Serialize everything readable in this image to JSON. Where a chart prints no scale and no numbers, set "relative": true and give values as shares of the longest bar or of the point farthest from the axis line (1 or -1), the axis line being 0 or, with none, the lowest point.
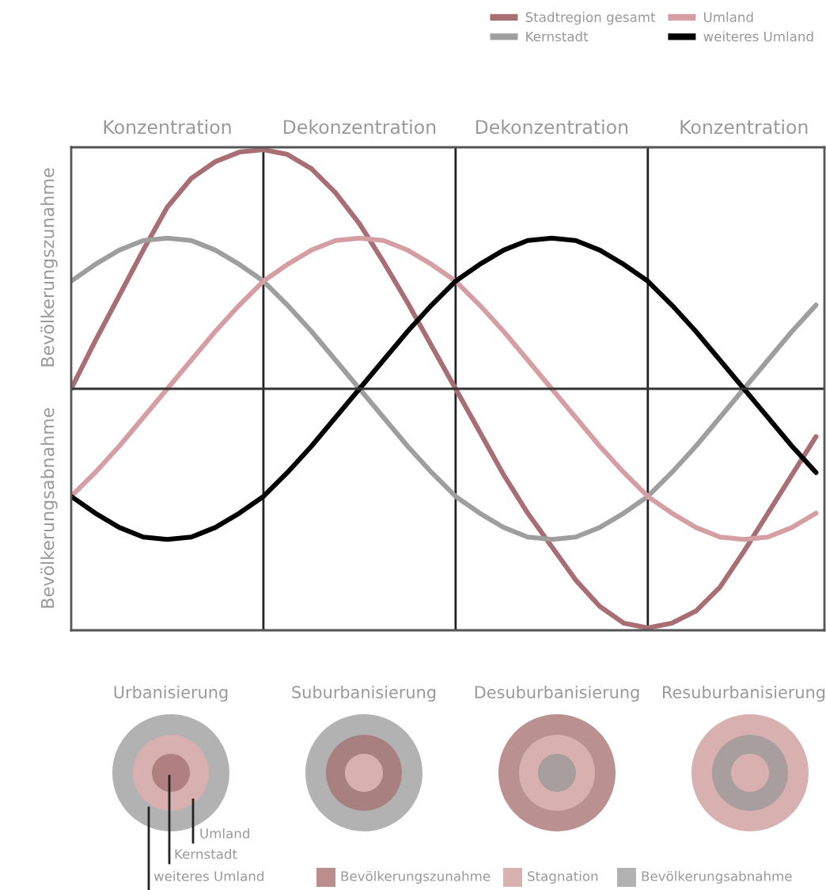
{
  "chart_data": {
    "type": "line",
    "relative": true,
    "categories": [
      null,
      null,
      null,
      null,
      null,
      null,
      null,
      null,
      null,
      null,
      null,
      null,
      null,
      null,
      null,
      null,
      null,
      null,
      null,
      null,
      null,
      null,
      null,
      null,
      null,
      null,
      null,
      null,
      null,
      null,
      null,
      null
    ],
    "grid": "x",
    "legend": "top right",
    "marker": "none",
    "line_style": "solid",
    "series": [
      {
        "name": "Stadtregion gesamt",
        "color": "#a86e74",
        "values": [
          0,
          0.2,
          0.39,
          0.58,
          0.76,
          0.88,
          0.95,
          0.99,
          1,
          0.98,
          0.92,
          0.82,
          0.69,
          0.53,
          0.36,
          0.18,
          0,
          -0.18,
          -0.36,
          -0.52,
          -0.66,
          -0.8,
          -0.91,
          -0.98,
          -1,
          -0.98,
          -0.93,
          -0.83,
          -0.68,
          -0.52,
          -0.36,
          -0.2
        ]
      },
      {
        "name": "Kernstadt",
        "color": "#9e9e9e",
        "values": [
          0.45,
          0.52,
          0.58,
          0.62,
          0.63,
          0.62,
          0.58,
          0.52,
          0.45,
          0.35,
          0.24,
          0.12,
          0,
          -0.12,
          -0.24,
          -0.35,
          -0.45,
          -0.52,
          -0.58,
          -0.62,
          -0.63,
          -0.62,
          -0.58,
          -0.52,
          -0.45,
          -0.35,
          -0.24,
          -0.12,
          0,
          0.12,
          0.24,
          0.35
        ]
      },
      {
        "name": "Umland",
        "color": "#d49ea2",
        "values": [
          -0.45,
          -0.35,
          -0.24,
          -0.12,
          0,
          0.12,
          0.24,
          0.35,
          0.45,
          0.52,
          0.58,
          0.62,
          0.63,
          0.62,
          0.58,
          0.52,
          0.45,
          0.35,
          0.24,
          0.12,
          0,
          -0.12,
          -0.24,
          -0.35,
          -0.45,
          -0.52,
          -0.58,
          -0.62,
          -0.63,
          -0.62,
          -0.58,
          -0.52
        ]
      },
      {
        "name": "weiteres Umland",
        "color": "#000000",
        "values": [
          -0.45,
          -0.52,
          -0.58,
          -0.62,
          -0.63,
          -0.62,
          -0.58,
          -0.52,
          -0.45,
          -0.35,
          -0.24,
          -0.12,
          0,
          0.12,
          0.24,
          0.35,
          0.45,
          0.52,
          0.58,
          0.62,
          0.63,
          0.62,
          0.58,
          0.52,
          0.45,
          0.35,
          0.24,
          0.12,
          0,
          -0.12,
          -0.24,
          -0.35
        ]
      }
    ],
    "annotations": [
      "Konzentration",
      "Dekonzentration",
      "Dekonzentration",
      "Konzentration",
      "Bevölkerungszunahme",
      "Bevölkerungsabnahme",
      "Urbanisierung",
      "Suburbanisierung",
      "Desuburbanisierung",
      "Resuburbanisierung",
      "Umland",
      "Kernstadt",
      "weiteres Umland",
      "Bevölkerungszunahme",
      "Stagnation",
      "Bevölkerungsabnahme"
    ]
  }
}
